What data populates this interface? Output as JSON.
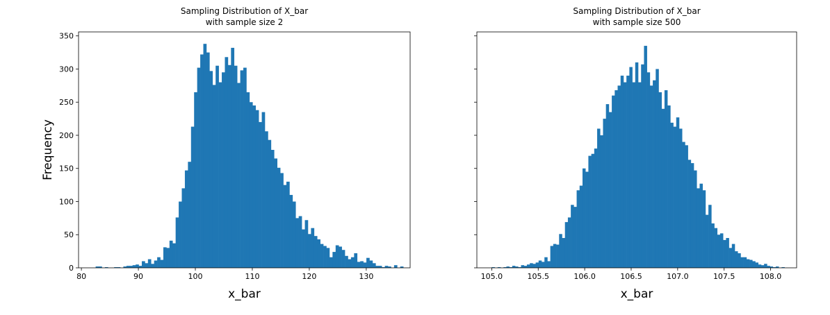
{
  "chart_data": [
    {
      "type": "histogram",
      "title": [
        "Sampling Distribution of X_bar",
        "with sample size 2"
      ],
      "xlabel": "x_bar",
      "ylabel": "Frequency",
      "color": "#1f77b4",
      "bins": [
        82.5,
        83.04,
        83.58,
        84.12,
        84.66,
        85.2,
        85.74,
        86.28,
        86.82,
        87.36,
        87.9,
        88.44,
        88.98,
        89.52,
        90.06,
        90.6,
        91.14,
        91.68,
        92.22,
        92.76,
        93.3,
        93.84,
        94.38,
        94.92,
        95.46,
        96,
        96.54,
        97.08,
        97.62,
        98.16,
        98.7,
        99.24,
        99.78,
        100.32,
        100.86,
        101.4,
        101.94,
        102.48,
        103.02,
        103.56,
        104.1,
        104.64,
        105.18,
        105.72,
        106.26,
        106.8,
        107.34,
        107.88,
        108.42,
        108.96,
        109.5,
        110.04,
        110.58,
        111.12,
        111.66,
        112.2,
        112.74,
        113.28,
        113.82,
        114.36,
        114.9,
        115.44,
        115.98,
        116.52,
        117.06,
        117.6,
        118.14,
        118.68,
        119.22,
        119.76,
        120.3,
        120.84,
        121.38,
        121.92,
        122.46,
        123,
        123.54,
        124.08,
        124.62,
        125.16,
        125.7,
        126.24,
        126.78,
        127.32,
        127.86,
        128.4,
        128.94,
        129.48,
        130.02,
        130.56,
        131.1,
        131.64,
        132.18,
        132.72,
        133.26,
        133.8,
        134.34,
        134.88,
        135.42,
        135.96,
        136.5
      ],
      "values": [
        2,
        2,
        0,
        1,
        0,
        0,
        1,
        1,
        0,
        2,
        3,
        3,
        4,
        5,
        3,
        10,
        7,
        13,
        6,
        11,
        16,
        12,
        31,
        30,
        41,
        37,
        76,
        100,
        120,
        147,
        160,
        213,
        265,
        302,
        322,
        338,
        325,
        297,
        276,
        305,
        280,
        295,
        318,
        306,
        332,
        305,
        279,
        298,
        302,
        265,
        250,
        245,
        238,
        220,
        235,
        206,
        193,
        178,
        165,
        151,
        143,
        125,
        130,
        110,
        100,
        75,
        78,
        58,
        72,
        51,
        60,
        48,
        43,
        36,
        33,
        30,
        16,
        24,
        34,
        32,
        27,
        18,
        13,
        16,
        22,
        9,
        10,
        8,
        15,
        11,
        7,
        3,
        3,
        1,
        3,
        2,
        0,
        4,
        0,
        2
      ],
      "xlim": [
        79.5,
        137.7
      ],
      "xticks": [
        80,
        90,
        100,
        110,
        120,
        130
      ],
      "ylim": [
        0,
        356
      ],
      "yticks": [
        0,
        50,
        100,
        150,
        200,
        250,
        300,
        350
      ]
    },
    {
      "type": "histogram",
      "title": [
        "Sampling Distribution of X_bar",
        "with sample size 500"
      ],
      "xlabel": "x_bar",
      "color": "#1f77b4",
      "bins": [
        105,
        105.0315,
        105.063,
        105.0945,
        105.126,
        105.1575,
        105.189,
        105.2205,
        105.252,
        105.2835,
        105.315,
        105.3465,
        105.378,
        105.4095,
        105.441,
        105.4725,
        105.504,
        105.5355,
        105.567,
        105.5985,
        105.63,
        105.6615,
        105.693,
        105.7245,
        105.756,
        105.7875,
        105.819,
        105.8505,
        105.882,
        105.9135,
        105.945,
        105.9765,
        106.008,
        106.0395,
        106.071,
        106.1025,
        106.134,
        106.1655,
        106.197,
        106.2285,
        106.26,
        106.2915,
        106.323,
        106.3545,
        106.386,
        106.4175,
        106.449,
        106.4805,
        106.512,
        106.5435,
        106.575,
        106.6065,
        106.638,
        106.6695,
        106.701,
        106.7325,
        106.764,
        106.7955,
        106.827,
        106.8585,
        106.89,
        106.9215,
        106.953,
        106.9845,
        107.016,
        107.0475,
        107.079,
        107.1105,
        107.142,
        107.1735,
        107.205,
        107.2365,
        107.268,
        107.2995,
        107.331,
        107.3625,
        107.394,
        107.4255,
        107.457,
        107.4885,
        107.52,
        107.5515,
        107.583,
        107.6145,
        107.646,
        107.6775,
        107.709,
        107.7405,
        107.772,
        107.8035,
        107.835,
        107.8665,
        107.898,
        107.9295,
        107.961,
        107.9925,
        108.024,
        108.0555,
        108.087,
        108.1185,
        108.15
      ],
      "values": [
        1,
        0,
        1,
        0,
        1,
        2,
        1,
        3,
        2,
        1,
        4,
        3,
        5,
        7,
        6,
        8,
        11,
        9,
        16,
        10,
        33,
        36,
        35,
        51,
        45,
        69,
        76,
        95,
        92,
        117,
        124,
        150,
        145,
        169,
        172,
        180,
        210,
        200,
        225,
        247,
        235,
        260,
        268,
        275,
        290,
        280,
        290,
        303,
        280,
        310,
        280,
        307,
        335,
        295,
        275,
        283,
        300,
        265,
        240,
        268,
        245,
        219,
        213,
        227,
        210,
        190,
        185,
        163,
        158,
        147,
        120,
        127,
        117,
        80,
        95,
        67,
        60,
        50,
        52,
        42,
        45,
        30,
        36,
        25,
        22,
        16,
        16,
        13,
        12,
        10,
        8,
        5,
        4,
        6,
        3,
        2,
        1,
        2,
        0,
        1
      ],
      "xlim": [
        104.84,
        108.28
      ],
      "xticks": [
        {
          "value": 105,
          "label": "105.0"
        },
        {
          "value": 105.5,
          "label": "105.5"
        },
        {
          "value": 106,
          "label": "106.0"
        },
        {
          "value": 106.5,
          "label": "106.5"
        },
        {
          "value": 107,
          "label": "107.0"
        },
        {
          "value": 107.5,
          "label": "107.5"
        },
        {
          "value": 108,
          "label": "108.0"
        }
      ],
      "ylim": [
        0,
        356
      ],
      "yticks": [
        0,
        50,
        100,
        150,
        200,
        250,
        300,
        350
      ],
      "ytick_labels_hidden": true
    }
  ]
}
